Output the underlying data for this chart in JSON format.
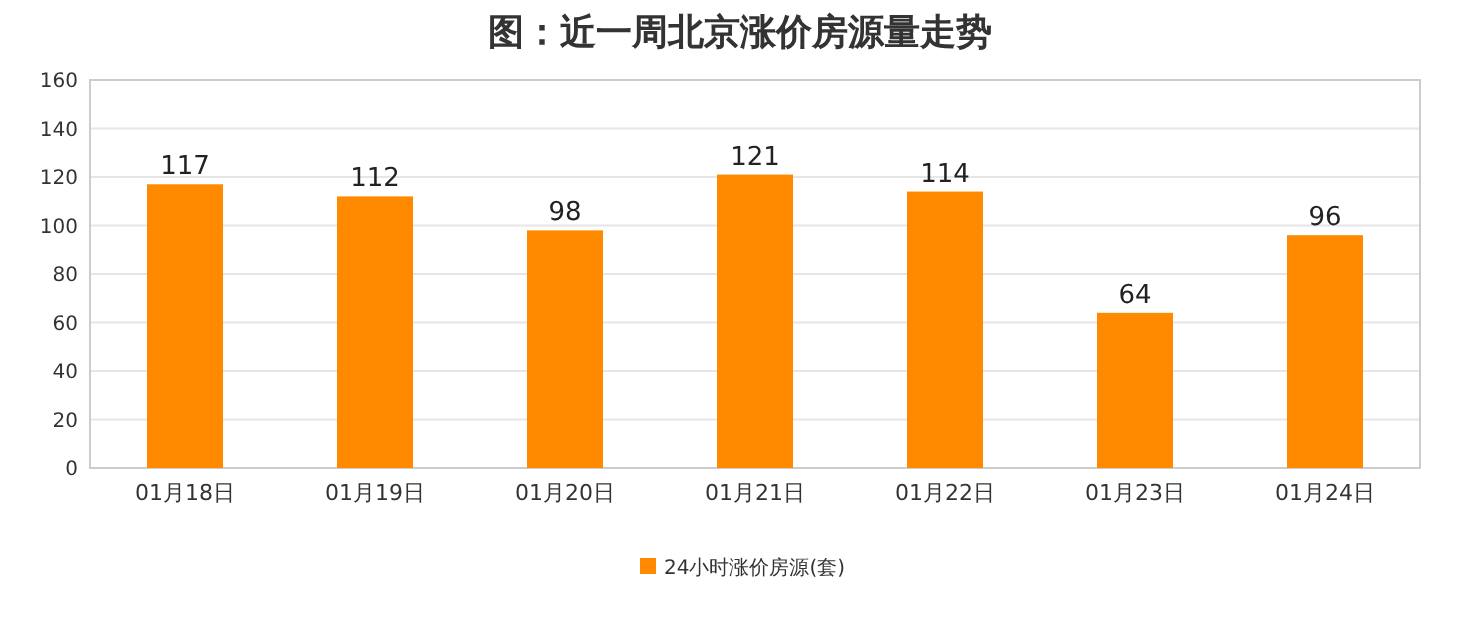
{
  "chart_data": {
    "type": "bar",
    "title": "图：近一周北京涨价房源量走势",
    "categories": [
      "01月18日",
      "01月19日",
      "01月20日",
      "01月21日",
      "01月22日",
      "01月23日",
      "01月24日"
    ],
    "series": [
      {
        "name": "24小时涨价房源(套)",
        "color": "#ff8a00",
        "values": [
          117,
          112,
          98,
          121,
          114,
          64,
          96
        ]
      }
    ],
    "ylim": [
      0,
      160
    ],
    "yticks": [
      0,
      20,
      40,
      60,
      80,
      100,
      120,
      140,
      160
    ],
    "grid": "y",
    "data_labels": true,
    "legend": "bottom"
  }
}
